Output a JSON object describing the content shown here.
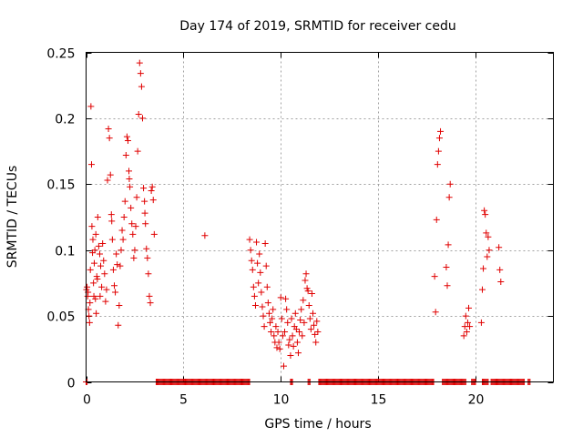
{
  "chart_data": {
    "type": "scatter",
    "title": "Day 174 of 2019, SRMTID for receiver cedu",
    "xlabel": "GPS time / hours",
    "ylabel": "SRMTID / TECUs",
    "xlim": [
      0,
      24
    ],
    "ylim": [
      0,
      0.25
    ],
    "xticks": [
      0,
      5,
      10,
      15,
      20
    ],
    "xtick_labels": [
      "0",
      "5",
      "10",
      "15",
      "20"
    ],
    "yticks": [
      0,
      0.05,
      0.1,
      0.15,
      0.2,
      0.25
    ],
    "ytick_labels": [
      "0",
      "0.05",
      "0.1",
      "0.15",
      "0.2",
      "0.25"
    ],
    "grid": true,
    "marker": "+",
    "color": "#e00000",
    "series": [
      {
        "name": "SRMTID",
        "x": [
          0.02,
          0.05,
          0.08,
          0.1,
          0.12,
          0.15,
          0.18,
          0.2,
          0.22,
          0.25,
          0.28,
          0.3,
          0.33,
          0.35,
          0.38,
          0.4,
          0.42,
          0.45,
          0.48,
          0.5,
          0.52,
          0.55,
          0.58,
          0.6,
          0.65,
          0.7,
          0.72,
          0.75,
          0.8,
          0.85,
          0.9,
          0.95,
          1.0,
          1.05,
          1.1,
          1.15,
          1.2,
          1.25,
          1.3,
          1.32,
          1.35,
          1.4,
          1.45,
          1.5,
          1.55,
          1.6,
          1.65,
          1.7,
          1.75,
          1.8,
          1.85,
          1.9,
          1.95,
          2.0,
          2.05,
          2.1,
          2.15,
          2.2,
          2.22,
          2.25,
          2.3,
          2.35,
          2.4,
          2.45,
          2.5,
          2.55,
          2.6,
          2.65,
          2.7,
          2.75,
          2.8,
          2.85,
          2.9,
          2.95,
          3.0,
          3.02,
          3.05,
          3.1,
          3.15,
          3.2,
          3.25,
          3.3,
          3.35,
          3.4,
          3.45,
          3.5,
          6.1,
          8.4,
          8.45,
          8.5,
          8.55,
          8.6,
          8.65,
          8.7,
          8.75,
          8.8,
          8.85,
          8.9,
          8.95,
          9.0,
          9.05,
          9.1,
          9.15,
          9.2,
          9.25,
          9.3,
          9.35,
          9.4,
          9.45,
          9.5,
          9.55,
          9.6,
          9.65,
          9.7,
          9.75,
          9.8,
          9.85,
          9.9,
          9.95,
          10.0,
          10.05,
          10.1,
          10.15,
          10.2,
          10.25,
          10.3,
          10.35,
          10.4,
          10.45,
          10.5,
          10.55,
          10.6,
          10.65,
          10.7,
          10.75,
          10.8,
          10.85,
          10.9,
          10.95,
          11.0,
          11.05,
          11.1,
          11.15,
          11.2,
          11.25,
          11.3,
          11.35,
          11.4,
          11.45,
          11.5,
          11.55,
          11.6,
          11.65,
          11.7,
          11.75,
          11.8,
          11.85,
          11.9,
          17.9,
          17.95,
          18.0,
          18.05,
          18.1,
          18.15,
          18.2,
          18.5,
          18.55,
          18.6,
          18.65,
          18.7,
          19.4,
          19.45,
          19.5,
          19.55,
          19.6,
          19.65,
          19.7,
          20.3,
          20.35,
          20.4,
          20.45,
          20.5,
          20.55,
          20.6,
          20.65,
          20.7,
          21.2,
          21.25,
          21.3
        ],
        "y": [
          0.07,
          0.072,
          0.065,
          0.068,
          0.055,
          0.05,
          0.045,
          0.06,
          0.085,
          0.209,
          0.165,
          0.118,
          0.098,
          0.108,
          0.075,
          0.065,
          0.09,
          0.1,
          0.063,
          0.112,
          0.052,
          0.08,
          0.078,
          0.125,
          0.103,
          0.097,
          0.065,
          0.088,
          0.072,
          0.105,
          0.092,
          0.082,
          0.061,
          0.07,
          0.153,
          0.192,
          0.185,
          0.157,
          0.127,
          0.122,
          0.108,
          0.085,
          0.073,
          0.068,
          0.097,
          0.089,
          0.043,
          0.058,
          0.088,
          0.1,
          0.115,
          0.108,
          0.125,
          0.137,
          0.172,
          0.186,
          0.183,
          0.16,
          0.154,
          0.148,
          0.132,
          0.12,
          0.112,
          0.094,
          0.1,
          0.118,
          0.14,
          0.175,
          0.203,
          0.242,
          0.234,
          0.224,
          0.2,
          0.147,
          0.137,
          0.128,
          0.12,
          0.101,
          0.094,
          0.082,
          0.065,
          0.06,
          0.145,
          0.148,
          0.138,
          0.112,
          0.111,
          0.108,
          0.1,
          0.092,
          0.085,
          0.072,
          0.065,
          0.058,
          0.106,
          0.09,
          0.075,
          0.097,
          0.083,
          0.068,
          0.057,
          0.05,
          0.042,
          0.105,
          0.088,
          0.072,
          0.06,
          0.052,
          0.045,
          0.038,
          0.048,
          0.055,
          0.035,
          0.03,
          0.042,
          0.026,
          0.038,
          0.03,
          0.025,
          0.064,
          0.048,
          0.035,
          0.012,
          0.038,
          0.063,
          0.055,
          0.045,
          0.028,
          0.032,
          0.02,
          0.048,
          0.035,
          0.027,
          0.042,
          0.052,
          0.04,
          0.03,
          0.022,
          0.038,
          0.047,
          0.055,
          0.035,
          0.062,
          0.045,
          0.077,
          0.082,
          0.071,
          0.069,
          0.058,
          0.048,
          0.04,
          0.067,
          0.052,
          0.043,
          0.036,
          0.03,
          0.046,
          0.038,
          0.08,
          0.053,
          0.123,
          0.165,
          0.175,
          0.185,
          0.19,
          0.087,
          0.073,
          0.104,
          0.14,
          0.15,
          0.035,
          0.042,
          0.05,
          0.038,
          0.045,
          0.056,
          0.042,
          0.045,
          0.07,
          0.086,
          0.13,
          0.127,
          0.113,
          0.095,
          0.11,
          0.1,
          0.102,
          0.085,
          0.076
        ]
      },
      {
        "name": "zero-values",
        "x_segments": [
          [
            0.0,
            0.05
          ],
          [
            3.6,
            8.4
          ],
          [
            10.5,
            10.6
          ],
          [
            11.4,
            11.5
          ],
          [
            11.95,
            17.85
          ],
          [
            18.3,
            19.5
          ],
          [
            19.8,
            20.0
          ],
          [
            20.35,
            20.65
          ],
          [
            20.8,
            22.5
          ],
          [
            22.7,
            22.8
          ]
        ],
        "y": 0
      }
    ]
  }
}
